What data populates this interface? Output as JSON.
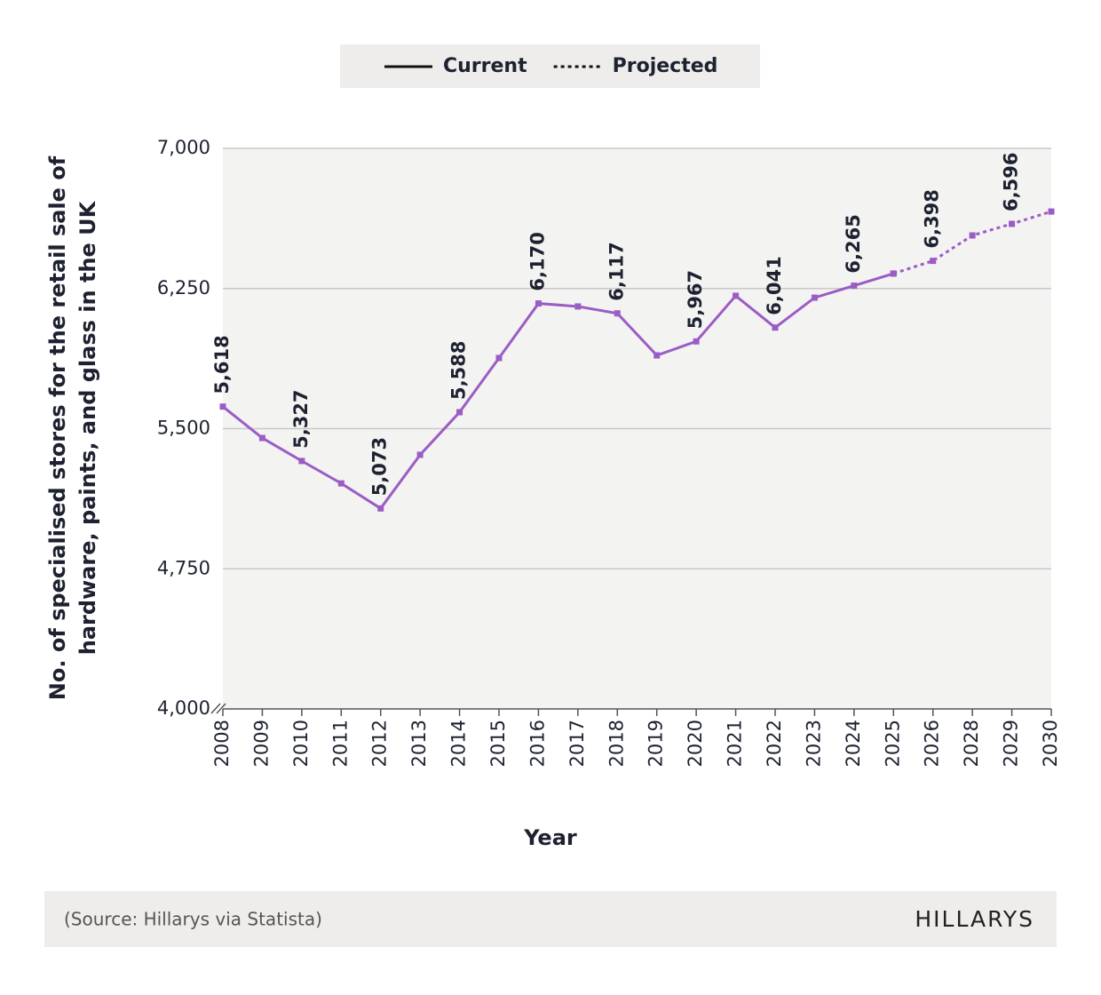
{
  "chart_data": {
    "type": "line",
    "ylabel": [
      "No. of specialised stores for the retail sale of",
      "hardware, paints, and glass in the UK"
    ],
    "xlabel": "Year",
    "source": "(Source: Hillarys via Statista)",
    "brand": "HILLARYS",
    "categories": [
      "2008",
      "2009",
      "2010",
      "2011",
      "2012",
      "2013",
      "2014",
      "2015",
      "2016",
      "2017",
      "2018",
      "2019",
      "2020",
      "2021",
      "2022",
      "2023",
      "2024",
      "2025",
      "2026",
      "2028",
      "2029",
      "2030"
    ],
    "series": [
      {
        "name": "Current",
        "color": "#9b5cc6",
        "dash": "solid",
        "values": [
          5618,
          5450,
          5327,
          5207,
          5073,
          5360,
          5588,
          5878,
          6170,
          6154,
          6117,
          5892,
          5967,
          6211,
          6041,
          6201,
          6265,
          6330,
          null,
          null,
          null,
          null
        ],
        "value_labels": [
          "5,618",
          null,
          "5,327",
          null,
          "5,073",
          null,
          "5,588",
          null,
          "6,170",
          null,
          "6,117",
          null,
          "5,967",
          null,
          "6,041",
          null,
          "6,265",
          null,
          null,
          null,
          null,
          null
        ]
      },
      {
        "name": "Projected",
        "color": "#9b5cc6",
        "dash": "dotted",
        "values": [
          null,
          null,
          null,
          null,
          null,
          null,
          null,
          null,
          null,
          null,
          null,
          null,
          null,
          null,
          null,
          null,
          null,
          6330,
          6398,
          6534,
          6596,
          6662
        ],
        "value_labels": [
          null,
          null,
          null,
          null,
          null,
          null,
          null,
          null,
          null,
          null,
          null,
          null,
          null,
          null,
          null,
          null,
          null,
          null,
          "6,398",
          null,
          "6,596",
          null
        ]
      }
    ],
    "ylim": [
      4000,
      7000
    ],
    "yticks": [
      {
        "value": 4000,
        "label": "4,000"
      },
      {
        "value": 4750,
        "label": "4,750"
      },
      {
        "value": 5500,
        "label": "5,500"
      },
      {
        "value": 6250,
        "label": "6,250"
      },
      {
        "value": 7000,
        "label": "7,000"
      }
    ],
    "grid": true,
    "legend": "top"
  }
}
